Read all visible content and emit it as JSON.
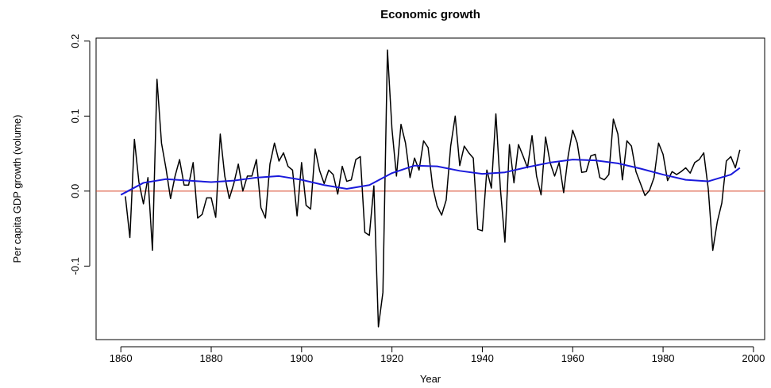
{
  "chart_data": {
    "type": "line",
    "title": "Economic growth",
    "xlabel": "Year",
    "ylabel": "Per capita GDP growth (volume)",
    "xlim": [
      1854.52,
      2002.48
    ],
    "xticks": [
      1860,
      1880,
      1900,
      1920,
      1940,
      1960,
      1980,
      2000
    ],
    "ylim": [
      -0.198,
      0.204
    ],
    "yticks": [
      -0.1,
      {
        "value": 0,
        "label": "0.0"
      },
      0.1,
      0.2
    ],
    "hline": {
      "value": 0,
      "color": "#d9482b"
    },
    "series": [
      {
        "color": "#000000",
        "x": [
          1861,
          1862,
          1863,
          1864,
          1865,
          1866,
          1867,
          1868,
          1869,
          1870,
          1871,
          1872,
          1873,
          1874,
          1875,
          1876,
          1877,
          1878,
          1879,
          1880,
          1881,
          1882,
          1883,
          1884,
          1885,
          1886,
          1887,
          1888,
          1889,
          1890,
          1891,
          1892,
          1893,
          1894,
          1895,
          1896,
          1897,
          1898,
          1899,
          1900,
          1901,
          1902,
          1903,
          1904,
          1905,
          1906,
          1907,
          1908,
          1909,
          1910,
          1911,
          1912,
          1913,
          1914,
          1915,
          1916,
          1917,
          1918,
          1919,
          1920,
          1921,
          1922,
          1923,
          1924,
          1925,
          1926,
          1927,
          1928,
          1929,
          1930,
          1931,
          1932,
          1933,
          1934,
          1935,
          1936,
          1937,
          1938,
          1939,
          1940,
          1941,
          1942,
          1943,
          1944,
          1945,
          1946,
          1947,
          1948,
          1949,
          1950,
          1951,
          1952,
          1953,
          1954,
          1955,
          1956,
          1957,
          1958,
          1959,
          1960,
          1961,
          1962,
          1963,
          1964,
          1965,
          1966,
          1967,
          1968,
          1969,
          1970,
          1971,
          1972,
          1973,
          1974,
          1975,
          1976,
          1977,
          1978,
          1979,
          1980,
          1981,
          1982,
          1983,
          1984,
          1985,
          1986,
          1987,
          1988,
          1989,
          1990,
          1991,
          1992,
          1993,
          1994,
          1995,
          1996,
          1997
        ],
        "values": [
          -0.007,
          -0.062,
          0.069,
          0.012,
          -0.017,
          0.018,
          -0.079,
          0.149,
          0.064,
          0.03,
          -0.01,
          0.02,
          0.042,
          0.008,
          0.008,
          0.038,
          -0.036,
          -0.031,
          -0.009,
          -0.009,
          -0.035,
          0.076,
          0.02,
          -0.01,
          0.01,
          0.036,
          0.0,
          0.02,
          0.02,
          0.042,
          -0.022,
          -0.036,
          0.036,
          0.064,
          0.04,
          0.051,
          0.033,
          0.028,
          -0.033,
          0.038,
          -0.019,
          -0.024,
          0.056,
          0.027,
          0.01,
          0.028,
          0.022,
          -0.004,
          0.033,
          0.013,
          0.015,
          0.042,
          0.046,
          -0.055,
          -0.059,
          0.007,
          -0.181,
          -0.135,
          0.188,
          0.083,
          0.02,
          0.089,
          0.064,
          0.018,
          0.044,
          0.028,
          0.067,
          0.058,
          0.006,
          -0.02,
          -0.032,
          -0.012,
          0.06,
          0.1,
          0.034,
          0.06,
          0.051,
          0.044,
          -0.051,
          -0.053,
          0.028,
          0.004,
          0.103,
          0.003,
          -0.068,
          0.062,
          0.011,
          0.062,
          0.047,
          0.031,
          0.074,
          0.02,
          -0.005,
          0.072,
          0.038,
          0.02,
          0.038,
          -0.002,
          0.047,
          0.081,
          0.064,
          0.025,
          0.026,
          0.047,
          0.049,
          0.018,
          0.015,
          0.022,
          0.096,
          0.076,
          0.015,
          0.067,
          0.06,
          0.026,
          0.01,
          -0.006,
          0.001,
          0.018,
          0.064,
          0.049,
          0.014,
          0.026,
          0.022,
          0.026,
          0.031,
          0.024,
          0.038,
          0.042,
          0.051,
          0.003,
          -0.079,
          -0.041,
          -0.016,
          0.04,
          0.046,
          0.031,
          0.055
        ]
      },
      {
        "color": "#1a1adb",
        "x": [
          1860,
          1865,
          1870,
          1875,
          1880,
          1885,
          1890,
          1895,
          1900,
          1905,
          1910,
          1915,
          1920,
          1925,
          1930,
          1935,
          1940,
          1945,
          1950,
          1955,
          1960,
          1965,
          1970,
          1975,
          1980,
          1985,
          1990,
          1995,
          1997
        ],
        "values": [
          -0.005,
          0.011,
          0.016,
          0.014,
          0.012,
          0.014,
          0.018,
          0.02,
          0.015,
          0.008,
          0.003,
          0.008,
          0.024,
          0.034,
          0.033,
          0.027,
          0.023,
          0.025,
          0.032,
          0.038,
          0.042,
          0.041,
          0.037,
          0.03,
          0.022,
          0.015,
          0.013,
          0.022,
          0.031
        ]
      }
    ]
  }
}
